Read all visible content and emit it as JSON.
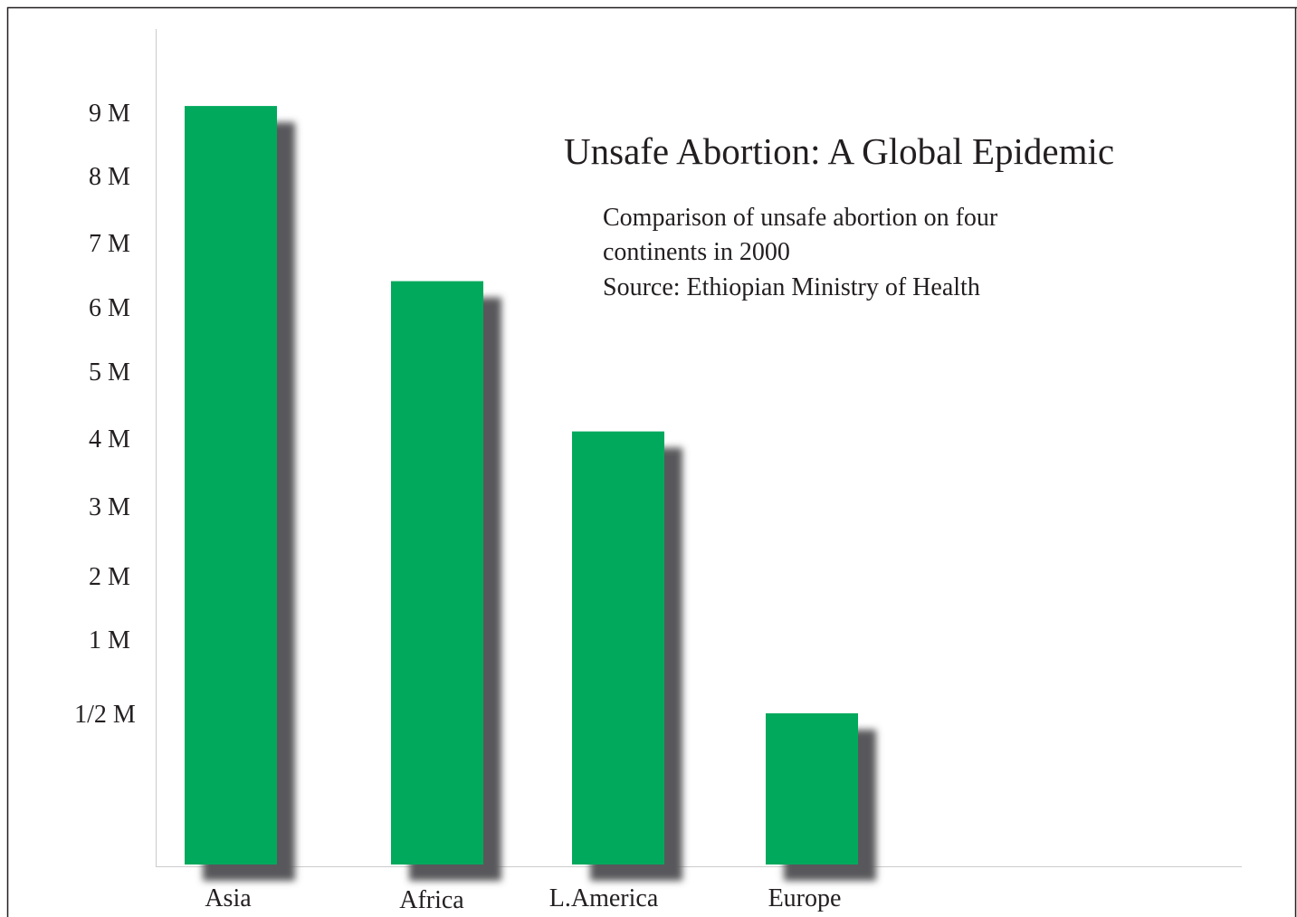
{
  "chart_data": {
    "type": "bar",
    "title": "Unsafe Abortion: A Global Epidemic",
    "subtitle_lines": [
      "Comparison of unsafe abortion on four",
      "continents in 2000",
      "Source: Ethiopian Ministry of Health"
    ],
    "categories": [
      "Asia",
      "Africa",
      "L.America",
      "Europe"
    ],
    "values": [
      9.1,
      6.4,
      4.1,
      0.5
    ],
    "y_ticks": [
      {
        "value": 0.5,
        "label": "1/2 M"
      },
      {
        "value": 1,
        "label": "1 M"
      },
      {
        "value": 2,
        "label": "2 M"
      },
      {
        "value": 3,
        "label": "3 M"
      },
      {
        "value": 4,
        "label": "4 M"
      },
      {
        "value": 5,
        "label": "5 M"
      },
      {
        "value": 6,
        "label": "6 M"
      },
      {
        "value": 7,
        "label": "7 M"
      },
      {
        "value": 8,
        "label": "8 M"
      },
      {
        "value": 9,
        "label": "9 M"
      }
    ],
    "ylim": [
      0,
      10
    ],
    "grid": false,
    "legend": "none",
    "colors": {
      "bar": "#00a95c",
      "shadow": "#58595b",
      "text": "#231f20",
      "axis": "#cccccc",
      "frame": "#231f20"
    }
  }
}
